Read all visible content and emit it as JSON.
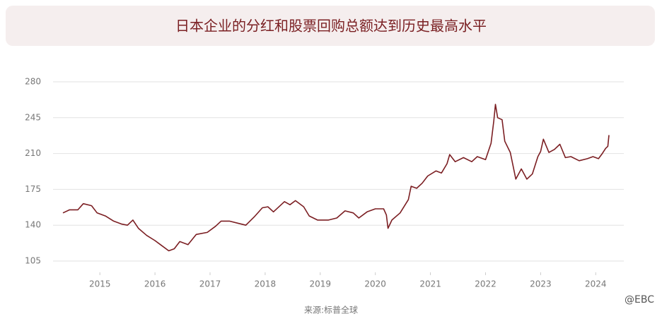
{
  "chart_data": {
    "type": "line",
    "title": "日本企业的分红和股票回购总额达到历史最高水平",
    "source": "来源:标普全球",
    "watermark": "@EBC",
    "x": [
      2014.33,
      2014.45,
      2014.6,
      2014.7,
      2014.85,
      2014.95,
      2015.1,
      2015.25,
      2015.4,
      2015.5,
      2015.6,
      2015.7,
      2015.85,
      2016.0,
      2016.1,
      2016.25,
      2016.35,
      2016.45,
      2016.6,
      2016.75,
      2016.95,
      2017.1,
      2017.2,
      2017.35,
      2017.5,
      2017.65,
      2017.8,
      2017.95,
      2018.05,
      2018.15,
      2018.35,
      2018.45,
      2018.55,
      2018.7,
      2018.8,
      2018.95,
      2019.15,
      2019.3,
      2019.45,
      2019.6,
      2019.7,
      2019.85,
      2020.0,
      2020.15,
      2020.2,
      2020.23,
      2020.3,
      2020.45,
      2020.6,
      2020.65,
      2020.75,
      2020.85,
      2020.95,
      2021.1,
      2021.2,
      2021.3,
      2021.35,
      2021.45,
      2021.6,
      2021.75,
      2021.85,
      2022.0,
      2022.1,
      2022.15,
      2022.18,
      2022.22,
      2022.3,
      2022.35,
      2022.45,
      2022.55,
      2022.65,
      2022.75,
      2022.85,
      2022.95,
      2023.0,
      2023.05,
      2023.15,
      2023.25,
      2023.35,
      2023.45,
      2023.55,
      2023.7,
      2023.85,
      2023.95,
      2024.05,
      2024.12,
      2024.18,
      2024.22,
      2024.24
    ],
    "series": [
      {
        "color": "#7b1e22",
        "values": [
          152,
          155,
          155,
          161,
          159,
          152,
          149,
          144,
          141,
          140,
          145,
          137,
          130,
          125,
          121,
          115,
          117,
          124,
          121,
          131,
          133,
          139,
          144,
          144,
          142,
          140,
          148,
          157,
          158,
          153,
          163,
          160,
          164,
          158,
          149,
          145,
          145,
          147,
          154,
          152,
          147,
          153,
          156,
          156,
          150,
          137,
          145,
          152,
          165,
          178,
          176,
          181,
          188,
          193,
          191,
          200,
          209,
          202,
          206,
          202,
          207,
          204,
          220,
          242,
          258,
          245,
          243,
          222,
          211,
          185,
          195,
          185,
          190,
          207,
          212,
          224,
          211,
          214,
          219,
          206,
          207,
          203,
          205,
          207,
          205,
          210,
          215,
          217,
          228
        ]
      }
    ],
    "xlim": [
      2014.15,
      2024.51
    ],
    "xticks": [
      2015,
      2016,
      2017,
      2018,
      2019,
      2020,
      2021,
      2022,
      2023,
      2024
    ],
    "ylim": [
      105,
      280
    ],
    "yticks": [
      105,
      140,
      175,
      210,
      245,
      280
    ],
    "grid": true
  }
}
